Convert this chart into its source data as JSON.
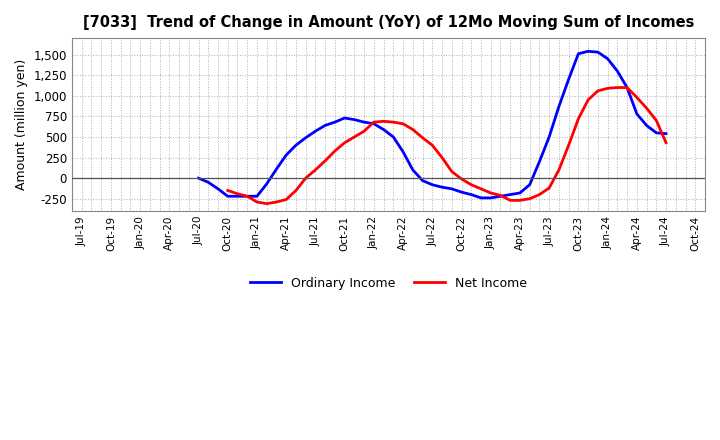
{
  "title": "[7033]  Trend of Change in Amount (YoY) of 12Mo Moving Sum of Incomes",
  "ylabel": "Amount (million yen)",
  "background_color": "#ffffff",
  "grid_color": "#b0b0b0",
  "x_tick_labels": [
    "Jul-19",
    "Oct-19",
    "Jan-20",
    "Apr-20",
    "Jul-20",
    "Oct-20",
    "Jan-21",
    "Apr-21",
    "Jul-21",
    "Oct-21",
    "Jan-22",
    "Apr-22",
    "Jul-22",
    "Oct-22",
    "Jan-23",
    "Apr-23",
    "Jul-23",
    "Oct-23",
    "Jan-24",
    "Apr-24",
    "Jul-24",
    "Oct-24"
  ],
  "x_tick_positions": [
    0,
    3,
    6,
    9,
    12,
    15,
    18,
    21,
    24,
    27,
    30,
    33,
    36,
    39,
    42,
    45,
    48,
    51,
    54,
    57,
    60,
    63
  ],
  "ordinary_income_x": [
    12,
    13,
    14,
    15,
    16,
    17,
    18,
    19,
    20,
    21,
    22,
    23,
    24,
    25,
    26,
    27,
    28,
    29,
    30,
    31,
    32,
    33,
    34,
    35,
    36,
    37,
    38,
    39,
    40,
    41,
    42,
    43,
    44,
    45,
    46,
    47,
    48,
    49,
    50,
    51,
    52,
    53,
    54,
    55,
    56,
    57,
    58,
    59,
    60
  ],
  "ordinary_income_y": [
    0,
    -50,
    -130,
    -220,
    -220,
    -220,
    -220,
    -70,
    110,
    280,
    400,
    490,
    570,
    640,
    680,
    730,
    710,
    680,
    660,
    590,
    500,
    320,
    100,
    -30,
    -80,
    -110,
    -130,
    -170,
    -200,
    -240,
    -240,
    -220,
    -200,
    -180,
    -80,
    200,
    500,
    870,
    1200,
    1510,
    1540,
    1530,
    1450,
    1300,
    1100,
    780,
    640,
    550,
    540
  ],
  "net_income_x": [
    15,
    16,
    17,
    18,
    19,
    20,
    21,
    22,
    23,
    24,
    25,
    26,
    27,
    28,
    29,
    30,
    31,
    32,
    33,
    34,
    35,
    36,
    37,
    38,
    39,
    40,
    41,
    42,
    43,
    44,
    45,
    46,
    47,
    48,
    49,
    50,
    51,
    52,
    53,
    54,
    55,
    56,
    57,
    58,
    59,
    60
  ],
  "net_income_y": [
    -150,
    -190,
    -220,
    -290,
    -310,
    -290,
    -260,
    -150,
    0,
    100,
    210,
    330,
    430,
    500,
    570,
    680,
    690,
    680,
    660,
    590,
    490,
    400,
    250,
    80,
    -10,
    -80,
    -130,
    -180,
    -210,
    -270,
    -270,
    -250,
    -200,
    -120,
    100,
    400,
    720,
    950,
    1060,
    1090,
    1100,
    1100,
    980,
    850,
    700,
    430
  ],
  "ordinary_color": "#0000ff",
  "net_color": "#ff0000",
  "ylim": [
    -400,
    1700
  ],
  "yticks": [
    -250,
    0,
    250,
    500,
    750,
    1000,
    1250,
    1500
  ],
  "line_width": 2.0,
  "x_total": 64
}
